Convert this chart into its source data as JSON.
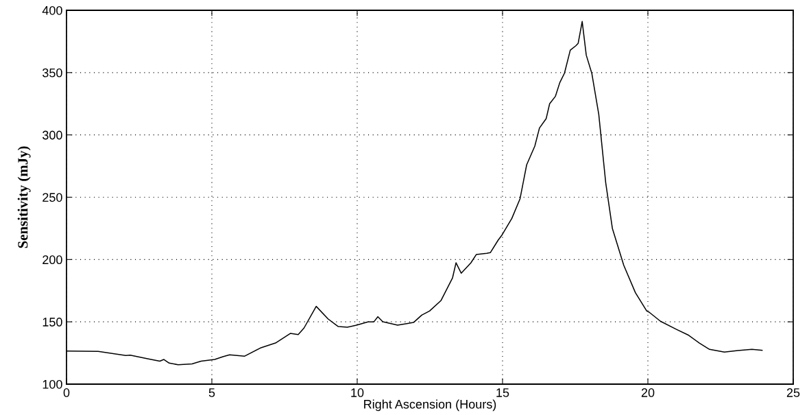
{
  "chart_data": {
    "type": "line",
    "xlabel": "Right Ascension (Hours)",
    "ylabel": "Sensitivity (mJy)",
    "xlim": [
      0,
      25
    ],
    "ylim": [
      100,
      400
    ],
    "xticks": [
      0,
      5,
      10,
      15,
      20,
      25
    ],
    "yticks": [
      100,
      150,
      200,
      250,
      300,
      350,
      400
    ],
    "grid": true,
    "series": [
      {
        "color": "#000000",
        "x": [
          0,
          1.09,
          2.04,
          2.19,
          2.82,
          3.21,
          3.35,
          3.53,
          3.84,
          4.32,
          4.63,
          5.1,
          5.38,
          5.61,
          6.12,
          6.67,
          7.19,
          7.7,
          7.97,
          8.17,
          8.59,
          9.0,
          9.27,
          9.35,
          9.66,
          9.98,
          10.37,
          10.57,
          10.71,
          10.88,
          11.39,
          11.71,
          11.94,
          12.22,
          12.49,
          12.88,
          13.28,
          13.4,
          13.58,
          13.91,
          14.1,
          14.46,
          14.58,
          14.85,
          14.97,
          15.32,
          15.6,
          15.83,
          16.11,
          16.27,
          16.5,
          16.62,
          16.82,
          16.97,
          17.13,
          17.33,
          17.52,
          17.6,
          17.74,
          17.88,
          18.07,
          18.31,
          18.55,
          18.78,
          19.17,
          19.57,
          19.96,
          20.04,
          20.43,
          20.98,
          21.38,
          21.77,
          22.12,
          22.63,
          23.1,
          23.58,
          23.93
        ],
        "values": [
          126.6,
          126.3,
          123,
          123.3,
          120.2,
          118.4,
          119.8,
          116.9,
          115.6,
          116.2,
          118.4,
          119.8,
          122,
          123.5,
          122.4,
          129,
          133,
          140.7,
          139.8,
          145,
          162.4,
          152.3,
          147.5,
          146.2,
          145.7,
          147.3,
          149.9,
          149.9,
          154.1,
          150.1,
          147.3,
          148.6,
          149.5,
          155.4,
          158.7,
          167,
          185.3,
          197.4,
          189,
          197.3,
          204.1,
          205,
          205.5,
          215.6,
          219.3,
          233,
          248.6,
          276,
          291,
          305.5,
          313,
          325,
          331,
          342,
          349.5,
          368,
          371.5,
          373.4,
          391,
          364,
          349.5,
          316.5,
          261.5,
          224.8,
          195.4,
          173.4,
          158.7,
          157.8,
          150.5,
          144,
          139.5,
          133,
          127.9,
          125.7,
          127,
          127.9,
          127.1
        ]
      }
    ]
  }
}
